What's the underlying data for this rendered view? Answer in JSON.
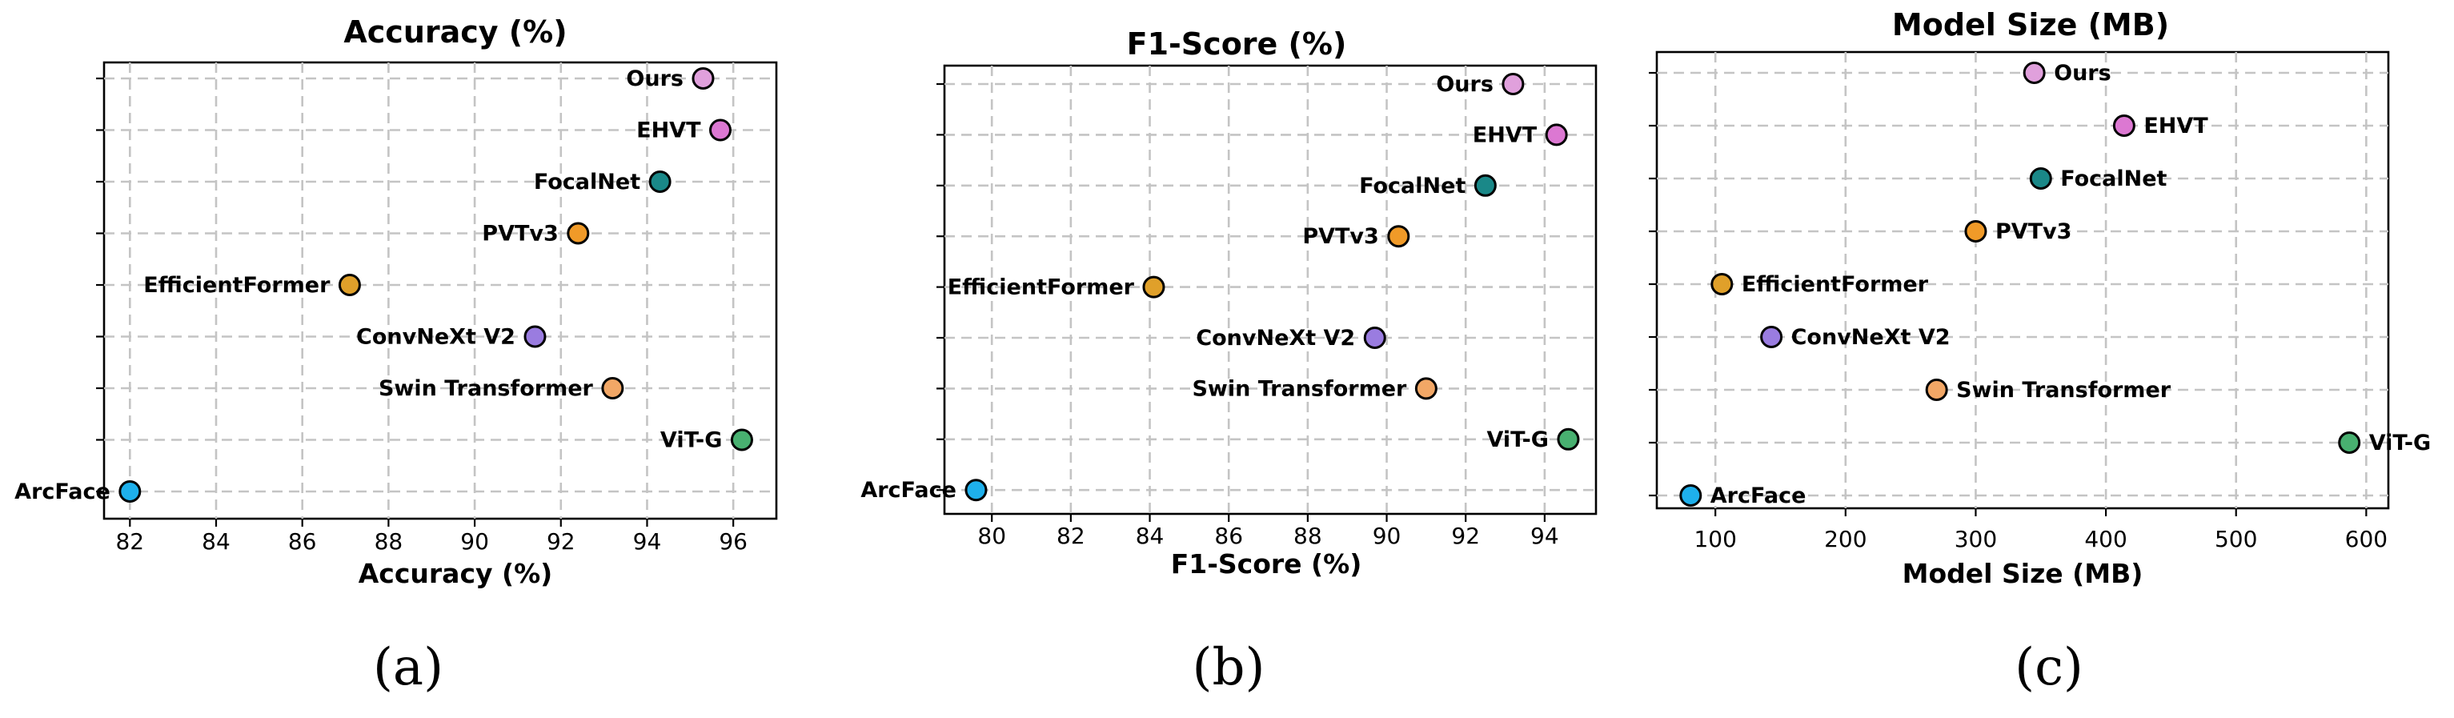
{
  "chart_data": [
    {
      "type": "scatter",
      "panel_label": "(a)",
      "title": "Accuracy (%)",
      "xlabel": "Accuracy (%)",
      "ylabel": "",
      "xlim": [
        81.4,
        97.0
      ],
      "xticks": [
        82,
        84,
        86,
        88,
        90,
        92,
        94,
        96
      ],
      "grid": true,
      "points": [
        {
          "label": "Ours",
          "x": 95.3,
          "color": "#e0a0dc",
          "side": "left"
        },
        {
          "label": "EHVT",
          "x": 95.7,
          "color": "#dc78d2",
          "side": "left"
        },
        {
          "label": "FocalNet",
          "x": 94.3,
          "color": "#1a8888",
          "side": "left"
        },
        {
          "label": "PVTv3",
          "x": 92.4,
          "color": "#f09a28",
          "side": "left"
        },
        {
          "label": "EfficientFormer",
          "x": 87.1,
          "color": "#e0a02a",
          "side": "left"
        },
        {
          "label": "ConvNeXt V2",
          "x": 91.4,
          "color": "#9a7ce0",
          "side": "left"
        },
        {
          "label": "Swin Transformer",
          "x": 93.2,
          "color": "#f2a766",
          "side": "left"
        },
        {
          "label": "ViT-G",
          "x": 96.2,
          "color": "#48b070",
          "side": "left"
        },
        {
          "label": "ArcFace",
          "x": 82.0,
          "color": "#1eb0ec",
          "side": "left"
        }
      ]
    },
    {
      "type": "scatter",
      "panel_label": "(b)",
      "title": "F1-Score (%)",
      "xlabel": "F1-Score (%)",
      "ylabel": "",
      "xlim": [
        78.8,
        95.3
      ],
      "xticks": [
        80,
        82,
        84,
        86,
        88,
        90,
        92,
        94
      ],
      "grid": true,
      "points": [
        {
          "label": "Ours",
          "x": 93.2,
          "color": "#e0a0dc",
          "side": "left"
        },
        {
          "label": "EHVT",
          "x": 94.3,
          "color": "#dc78d2",
          "side": "left"
        },
        {
          "label": "FocalNet",
          "x": 92.5,
          "color": "#1a8888",
          "side": "left"
        },
        {
          "label": "PVTv3",
          "x": 90.3,
          "color": "#f09a28",
          "side": "left"
        },
        {
          "label": "EfficientFormer",
          "x": 84.1,
          "color": "#e0a02a",
          "side": "left"
        },
        {
          "label": "ConvNeXt V2",
          "x": 89.7,
          "color": "#9a7ce0",
          "side": "left"
        },
        {
          "label": "Swin Transformer",
          "x": 91.0,
          "color": "#f2a766",
          "side": "left"
        },
        {
          "label": "ViT-G",
          "x": 94.6,
          "color": "#48b070",
          "side": "left"
        },
        {
          "label": "ArcFace",
          "x": 79.6,
          "color": "#1eb0ec",
          "side": "left"
        }
      ]
    },
    {
      "type": "scatter",
      "panel_label": "(c)",
      "title": "Model Size (MB)",
      "xlabel": "Model Size (MB)",
      "ylabel": "",
      "xlim": [
        55,
        617
      ],
      "xticks": [
        100,
        200,
        300,
        400,
        500,
        600
      ],
      "grid": true,
      "points": [
        {
          "label": "Ours",
          "x": 345,
          "color": "#e0a0dc",
          "side": "right"
        },
        {
          "label": "EHVT",
          "x": 414,
          "color": "#dc78d2",
          "side": "right"
        },
        {
          "label": "FocalNet",
          "x": 350,
          "color": "#1a8888",
          "side": "right"
        },
        {
          "label": "PVTv3",
          "x": 300,
          "color": "#f09a28",
          "side": "right"
        },
        {
          "label": "EfficientFormer",
          "x": 105,
          "color": "#e0a02a",
          "side": "right"
        },
        {
          "label": "ConvNeXt V2",
          "x": 143,
          "color": "#9a7ce0",
          "side": "right"
        },
        {
          "label": "Swin Transformer",
          "x": 270,
          "color": "#f2a766",
          "side": "right"
        },
        {
          "label": "ViT-G",
          "x": 587,
          "color": "#48b070",
          "side": "right"
        },
        {
          "label": "ArcFace",
          "x": 81,
          "color": "#1eb0ec",
          "side": "right"
        }
      ]
    }
  ]
}
